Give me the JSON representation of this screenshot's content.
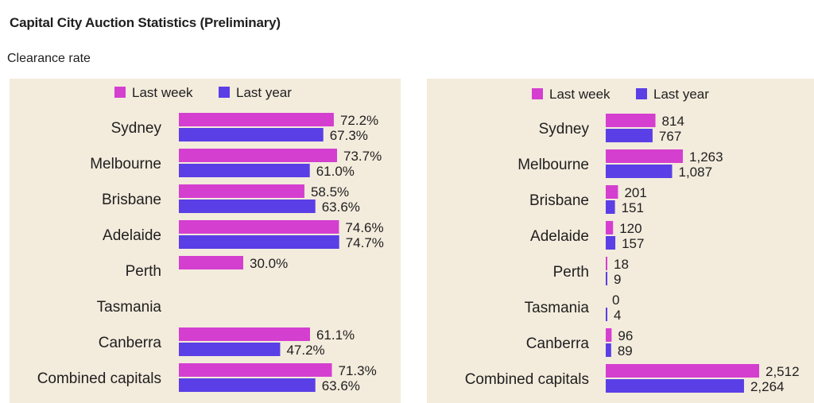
{
  "title": "Capital City Auction Statistics (Preliminary)",
  "subtitle": "Clearance rate",
  "colors": {
    "last_week": "#d43fd0",
    "last_year": "#5a3ee6",
    "panel_bg": "#f3ebdc"
  },
  "chart_data": [
    {
      "type": "bar",
      "orientation": "horizontal",
      "title": "",
      "legend": [
        "Last week",
        "Last year"
      ],
      "legend_position": "top",
      "categories": [
        "Sydney",
        "Melbourne",
        "Brisbane",
        "Adelaide",
        "Perth",
        "Tasmania",
        "Canberra",
        "Combined capitals"
      ],
      "series": [
        {
          "name": "Last week",
          "values": [
            72.2,
            73.7,
            58.5,
            74.6,
            30.0,
            null,
            61.1,
            71.3
          ],
          "labels": [
            "72.2%",
            "73.7%",
            "58.5%",
            "74.6%",
            "30.0%",
            "",
            "61.1%",
            "71.3%"
          ]
        },
        {
          "name": "Last year",
          "values": [
            67.3,
            61.0,
            63.6,
            74.7,
            null,
            null,
            47.2,
            63.6
          ],
          "labels": [
            "67.3%",
            "61.0%",
            "63.6%",
            "74.7%",
            "",
            "",
            "47.2%",
            "63.6%"
          ]
        }
      ],
      "xlim": [
        0,
        100
      ],
      "grid": false
    },
    {
      "type": "bar",
      "orientation": "horizontal",
      "title": "",
      "legend": [
        "Last week",
        "Last year"
      ],
      "legend_position": "top",
      "categories": [
        "Sydney",
        "Melbourne",
        "Brisbane",
        "Adelaide",
        "Perth",
        "Tasmania",
        "Canberra",
        "Combined capitals"
      ],
      "series": [
        {
          "name": "Last week",
          "values": [
            814,
            1263,
            201,
            120,
            18,
            0,
            96,
            2512
          ],
          "labels": [
            "814",
            "1,263",
            "201",
            "120",
            "18",
            "0",
            "96",
            "2,512"
          ]
        },
        {
          "name": "Last year",
          "values": [
            767,
            1087,
            151,
            157,
            9,
            4,
            89,
            2264
          ],
          "labels": [
            "767",
            "1,087",
            "151",
            "157",
            "9",
            "4",
            "89",
            "2,264"
          ]
        }
      ],
      "xlim": [
        0,
        2512
      ],
      "grid": false
    }
  ]
}
